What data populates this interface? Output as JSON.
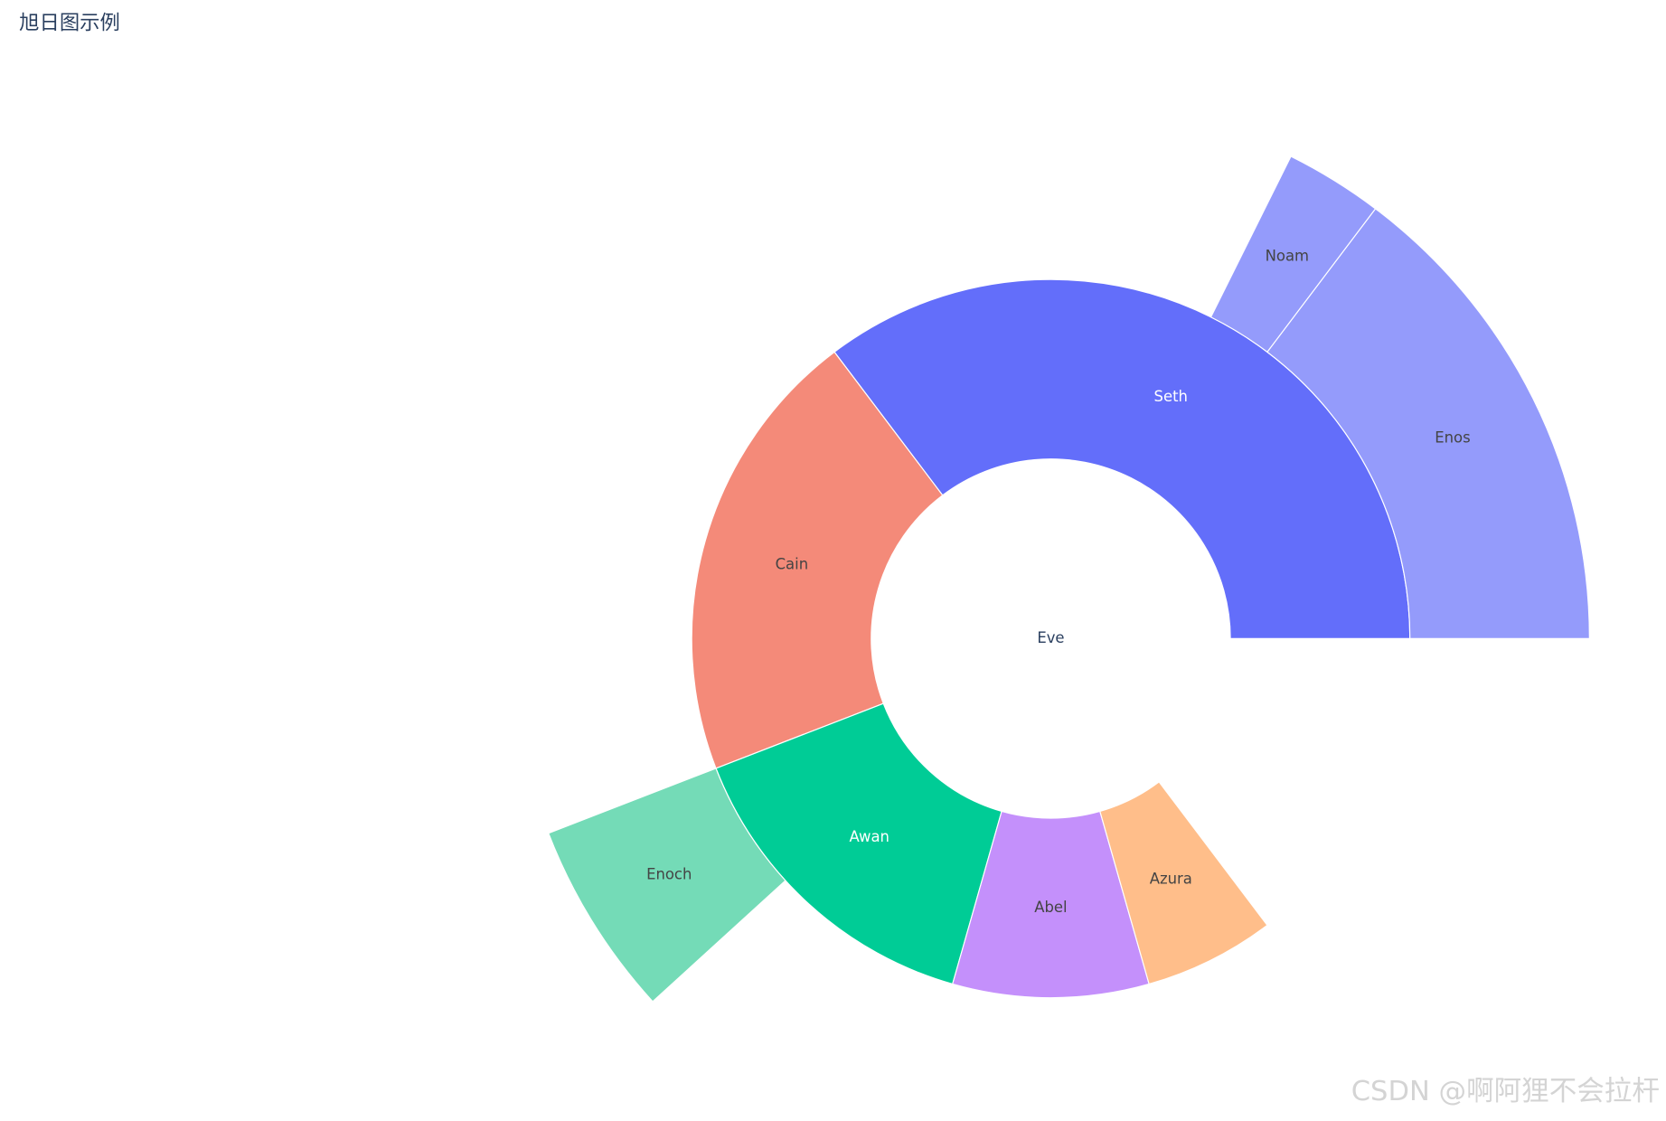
{
  "chart_data": {
    "type": "sunburst",
    "title": "旭日图示例",
    "labels": [
      "Eve",
      "Seth",
      "Enos",
      "Noam",
      "Cain",
      "Awan",
      "Enoch",
      "Abel",
      "Azura"
    ],
    "parents": [
      null,
      "Eve",
      "Seth",
      "Seth",
      "Eve",
      "Eve",
      "Awan",
      "Eve",
      "Eve"
    ],
    "values": [
      10,
      12,
      10,
      2,
      14,
      6,
      4,
      6,
      4
    ],
    "colors": [
      "#ffffff",
      "#636efa",
      "#949bfb",
      "#949bfb",
      "#f48a79",
      "#00cc96",
      "#74dbb7",
      "#c490fb",
      "#ffbe8a"
    ]
  },
  "watermark": "CSDN @啊阿狸不会拉杆"
}
